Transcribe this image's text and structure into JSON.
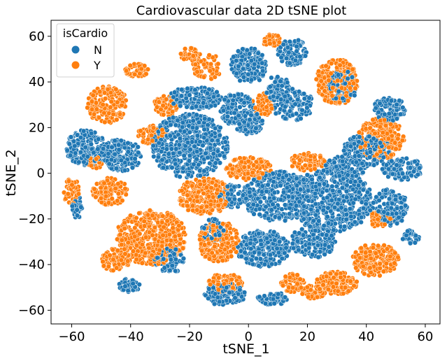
{
  "chart_data": {
    "type": "scatter",
    "title": "Cardiovascular data 2D tSNE plot",
    "xlabel": "tSNE_1",
    "ylabel": "tSNE_2",
    "xlim": [
      -67,
      65
    ],
    "ylim": [
      -66,
      67
    ],
    "xticks": [
      -60,
      -40,
      -20,
      0,
      20,
      40,
      60
    ],
    "yticks": [
      -60,
      -40,
      -20,
      0,
      20,
      40,
      60
    ],
    "grid": false,
    "legend": {
      "title": "isCardio",
      "placement": "top-left",
      "entries": [
        {
          "label": "N",
          "color": "#1f77b4"
        },
        {
          "label": "Y",
          "color": "#ff7f0e"
        }
      ]
    },
    "series": [
      {
        "name": "N",
        "color": "#1f77b4",
        "clusters": [
          {
            "cx": -55,
            "cy": 11,
            "rx": 7,
            "ry": 8,
            "n": 200
          },
          {
            "cx": -43,
            "cy": 8,
            "rx": 7,
            "ry": 7,
            "n": 180
          },
          {
            "cx": -20,
            "cy": 12,
            "rx": 13,
            "ry": 14,
            "n": 550
          },
          {
            "cx": -18,
            "cy": 33,
            "rx": 9,
            "ry": 5,
            "n": 160
          },
          {
            "cx": -4,
            "cy": 28,
            "rx": 6,
            "ry": 7,
            "n": 140
          },
          {
            "cx": 0,
            "cy": 47,
            "rx": 6,
            "ry": 8,
            "n": 170
          },
          {
            "cx": 0,
            "cy": 22,
            "rx": 5,
            "ry": 5,
            "n": 90
          },
          {
            "cx": 10,
            "cy": 37,
            "rx": 4,
            "ry": 6,
            "n": 70
          },
          {
            "cx": 15,
            "cy": 30,
            "rx": 7,
            "ry": 7,
            "n": 120
          },
          {
            "cx": 15,
            "cy": 53,
            "rx": 5,
            "ry": 6,
            "n": 90
          },
          {
            "cx": 32,
            "cy": 38,
            "rx": 5,
            "ry": 7,
            "n": 80
          },
          {
            "cx": 40,
            "cy": 10,
            "rx": 8,
            "ry": 7,
            "n": 160
          },
          {
            "cx": 52,
            "cy": 2,
            "rx": 7,
            "ry": 5,
            "n": 110
          },
          {
            "cx": 48,
            "cy": 28,
            "rx": 6,
            "ry": 5,
            "n": 90
          },
          {
            "cx": 10,
            "cy": -10,
            "rx": 12,
            "ry": 11,
            "n": 380
          },
          {
            "cx": 28,
            "cy": -12,
            "rx": 14,
            "ry": 14,
            "n": 520
          },
          {
            "cx": 5,
            "cy": -33,
            "rx": 9,
            "ry": 8,
            "n": 240
          },
          {
            "cx": 22,
            "cy": -30,
            "rx": 8,
            "ry": 7,
            "n": 180
          },
          {
            "cx": 48,
            "cy": -15,
            "rx": 6,
            "ry": 8,
            "n": 140
          },
          {
            "cx": 55,
            "cy": -28,
            "rx": 3,
            "ry": 3,
            "n": 30
          },
          {
            "cx": 33,
            "cy": 3,
            "rx": 7,
            "ry": 5,
            "n": 110
          },
          {
            "cx": -27,
            "cy": -38,
            "rx": 5,
            "ry": 6,
            "n": 80
          },
          {
            "cx": -12,
            "cy": -25,
            "rx": 4,
            "ry": 5,
            "n": 60
          },
          {
            "cx": -8,
            "cy": -53,
            "rx": 7,
            "ry": 5,
            "n": 120
          },
          {
            "cx": 8,
            "cy": -55,
            "rx": 5,
            "ry": 3,
            "n": 60
          },
          {
            "cx": -40,
            "cy": -49,
            "rx": 4,
            "ry": 3,
            "n": 40
          },
          {
            "cx": -5,
            "cy": -10,
            "rx": 5,
            "ry": 5,
            "n": 70
          },
          {
            "cx": -58,
            "cy": -15,
            "rx": 2,
            "ry": 5,
            "n": 30
          }
        ]
      },
      {
        "name": "Y",
        "color": "#ff7f0e",
        "clusters": [
          {
            "cx": -48,
            "cy": 30,
            "rx": 7,
            "ry": 8,
            "n": 170
          },
          {
            "cx": -38,
            "cy": 45,
            "rx": 4,
            "ry": 3,
            "n": 50
          },
          {
            "cx": -28,
            "cy": 30,
            "rx": 4,
            "ry": 5,
            "n": 60
          },
          {
            "cx": -33,
            "cy": 17,
            "rx": 5,
            "ry": 4,
            "n": 60
          },
          {
            "cx": -33,
            "cy": -28,
            "rx": 12,
            "ry": 12,
            "n": 440
          },
          {
            "cx": -15,
            "cy": -10,
            "rx": 9,
            "ry": 8,
            "n": 260
          },
          {
            "cx": -10,
            "cy": -30,
            "rx": 7,
            "ry": 9,
            "n": 220
          },
          {
            "cx": -47,
            "cy": -8,
            "rx": 6,
            "ry": 6,
            "n": 120
          },
          {
            "cx": -45,
            "cy": -38,
            "rx": 5,
            "ry": 5,
            "n": 90
          },
          {
            "cx": -60,
            "cy": -8,
            "rx": 3,
            "ry": 6,
            "n": 50
          },
          {
            "cx": 0,
            "cy": 2,
            "rx": 8,
            "ry": 5,
            "n": 140
          },
          {
            "cx": 30,
            "cy": 40,
            "rx": 7,
            "ry": 10,
            "n": 250
          },
          {
            "cx": 45,
            "cy": 15,
            "rx": 8,
            "ry": 9,
            "n": 220
          },
          {
            "cx": 43,
            "cy": -38,
            "rx": 8,
            "ry": 7,
            "n": 220
          },
          {
            "cx": 30,
            "cy": -48,
            "rx": 7,
            "ry": 5,
            "n": 150
          },
          {
            "cx": -20,
            "cy": 52,
            "rx": 3,
            "ry": 3,
            "n": 40
          },
          {
            "cx": -14,
            "cy": 47,
            "rx": 5,
            "ry": 6,
            "n": 60
          },
          {
            "cx": 8,
            "cy": 58,
            "rx": 3,
            "ry": 3,
            "n": 30
          },
          {
            "cx": 20,
            "cy": 5,
            "rx": 6,
            "ry": 4,
            "n": 80
          },
          {
            "cx": 15,
            "cy": -48,
            "rx": 4,
            "ry": 4,
            "n": 60
          },
          {
            "cx": 22,
            "cy": -52,
            "rx": 4,
            "ry": 3,
            "n": 50
          },
          {
            "cx": -8,
            "cy": -48,
            "rx": 6,
            "ry": 4,
            "n": 90
          },
          {
            "cx": 5,
            "cy": 30,
            "rx": 4,
            "ry": 5,
            "n": 50
          },
          {
            "cx": 45,
            "cy": -20,
            "rx": 4,
            "ry": 4,
            "n": 50
          },
          {
            "cx": -52,
            "cy": 5,
            "rx": 3,
            "ry": 3,
            "n": 30
          }
        ]
      }
    ]
  }
}
